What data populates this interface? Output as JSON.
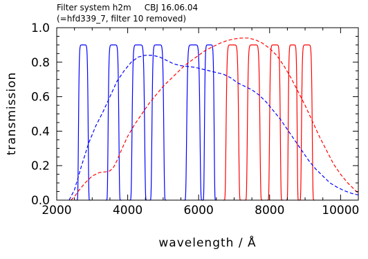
{
  "chart_data": {
    "type": "line",
    "title": "Filter system h2m     CBJ 16.06.04",
    "subtitle": "(=hfd339_7, filter 10 removed)",
    "xlabel": "wavelength / Å",
    "ylabel": "transmission",
    "xlim": [
      2000,
      10500
    ],
    "ylim": [
      0.0,
      1.0
    ],
    "x_ticks": [
      2000,
      4000,
      6000,
      8000,
      10000
    ],
    "x_tick_labels": [
      "2000",
      "4000",
      "6000",
      "8000",
      "10000"
    ],
    "y_ticks": [
      0.0,
      0.2,
      0.4,
      0.6,
      0.8,
      1.0
    ],
    "y_tick_labels": [
      "0.0",
      "0.2",
      "0.4",
      "0.6",
      "0.8",
      "1.0"
    ],
    "grid": false,
    "legend": "none",
    "filter_peak": 0.9,
    "filters": [
      {
        "center": 2750,
        "width": 270,
        "color": "#0000ff"
      },
      {
        "center": 3600,
        "width": 300,
        "color": "#0000ff"
      },
      {
        "center": 4300,
        "width": 350,
        "color": "#0000ff"
      },
      {
        "center": 4850,
        "width": 330,
        "color": "#0000ff"
      },
      {
        "center": 5850,
        "width": 370,
        "color": "#0000ff"
      },
      {
        "center": 6300,
        "width": 270,
        "color": "#0000ff"
      },
      {
        "center": 6950,
        "width": 350,
        "color": "#ff0000"
      },
      {
        "center": 7550,
        "width": 350,
        "color": "#ff0000"
      },
      {
        "center": 8150,
        "width": 300,
        "color": "#ff0000"
      },
      {
        "center": 8650,
        "width": 250,
        "color": "#ff0000"
      },
      {
        "center": 9050,
        "width": 300,
        "color": "#ff0000"
      }
    ],
    "series": [
      {
        "style": "dashed",
        "color": "#0000ff",
        "x": [
          2350,
          2500,
          2700,
          2900,
          3100,
          3300,
          3500,
          3700,
          3900,
          4100,
          4300,
          4500,
          4700,
          4900,
          5100,
          5300,
          5500,
          5700,
          5900,
          6100,
          6300,
          6500,
          6700,
          6900,
          7100,
          7300,
          7500,
          7700,
          7900,
          8100,
          8300,
          8500,
          8700,
          8900,
          9100,
          9300,
          9500,
          9700,
          9900,
          10100,
          10300,
          10500
        ],
        "y": [
          0.0,
          0.06,
          0.2,
          0.33,
          0.43,
          0.51,
          0.6,
          0.69,
          0.75,
          0.8,
          0.83,
          0.84,
          0.84,
          0.83,
          0.81,
          0.79,
          0.78,
          0.775,
          0.77,
          0.76,
          0.75,
          0.74,
          0.73,
          0.71,
          0.68,
          0.66,
          0.64,
          0.61,
          0.57,
          0.52,
          0.47,
          0.41,
          0.35,
          0.29,
          0.23,
          0.18,
          0.14,
          0.1,
          0.075,
          0.055,
          0.04,
          0.03
        ]
      },
      {
        "style": "dashed",
        "color": "#ff0000",
        "x": [
          2400,
          2500,
          2600,
          2800,
          3000,
          3200,
          3400,
          3500,
          3600,
          3700,
          3800,
          4000,
          4200,
          4400,
          4600,
          4800,
          5000,
          5200,
          5400,
          5600,
          5800,
          6000,
          6200,
          6400,
          6600,
          6800,
          7000,
          7200,
          7400,
          7600,
          7800,
          8000,
          8200,
          8400,
          8600,
          8800,
          9000,
          9200,
          9400,
          9600,
          9800,
          10000,
          10200,
          10400,
          10500
        ],
        "y": [
          0.0,
          0.02,
          0.05,
          0.1,
          0.14,
          0.16,
          0.165,
          0.17,
          0.19,
          0.23,
          0.28,
          0.37,
          0.44,
          0.5,
          0.56,
          0.61,
          0.66,
          0.7,
          0.74,
          0.78,
          0.81,
          0.84,
          0.87,
          0.89,
          0.91,
          0.925,
          0.935,
          0.94,
          0.94,
          0.93,
          0.91,
          0.88,
          0.84,
          0.78,
          0.71,
          0.63,
          0.55,
          0.46,
          0.37,
          0.29,
          0.21,
          0.15,
          0.1,
          0.06,
          0.04
        ]
      }
    ]
  }
}
